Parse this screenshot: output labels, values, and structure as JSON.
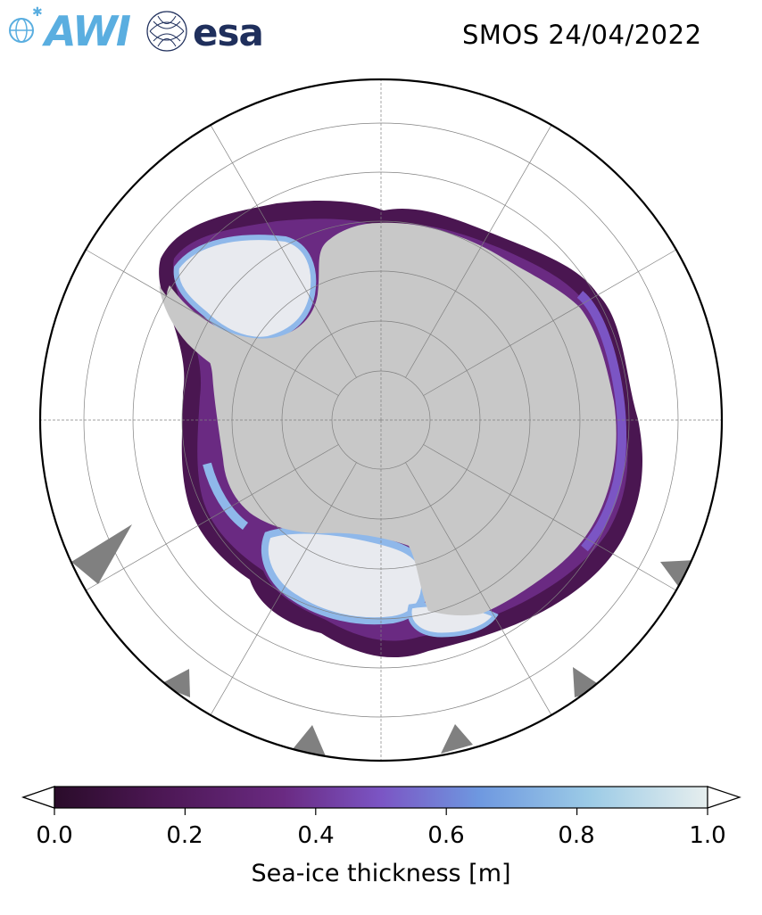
{
  "header": {
    "logo_awi": "AWI",
    "logo_esa": "esa",
    "title": "SMOS 24/04/2022"
  },
  "colorbar": {
    "label": "Sea-ice thickness [m]",
    "ticks": [
      "0.0",
      "0.2",
      "0.4",
      "0.6",
      "0.8",
      "1.0"
    ],
    "range": [
      0.0,
      1.0
    ],
    "extend": "both",
    "colors": [
      "#2a0c2a",
      "#4a1651",
      "#6a2a82",
      "#7b55c4",
      "#6e98e0",
      "#9ccbe6",
      "#e6eeee"
    ]
  },
  "map": {
    "projection": "south-polar-stereographic",
    "land_color": "#c8c8c8",
    "ocean_color": "#ffffff",
    "mask_color": "#808080",
    "grid": true
  }
}
